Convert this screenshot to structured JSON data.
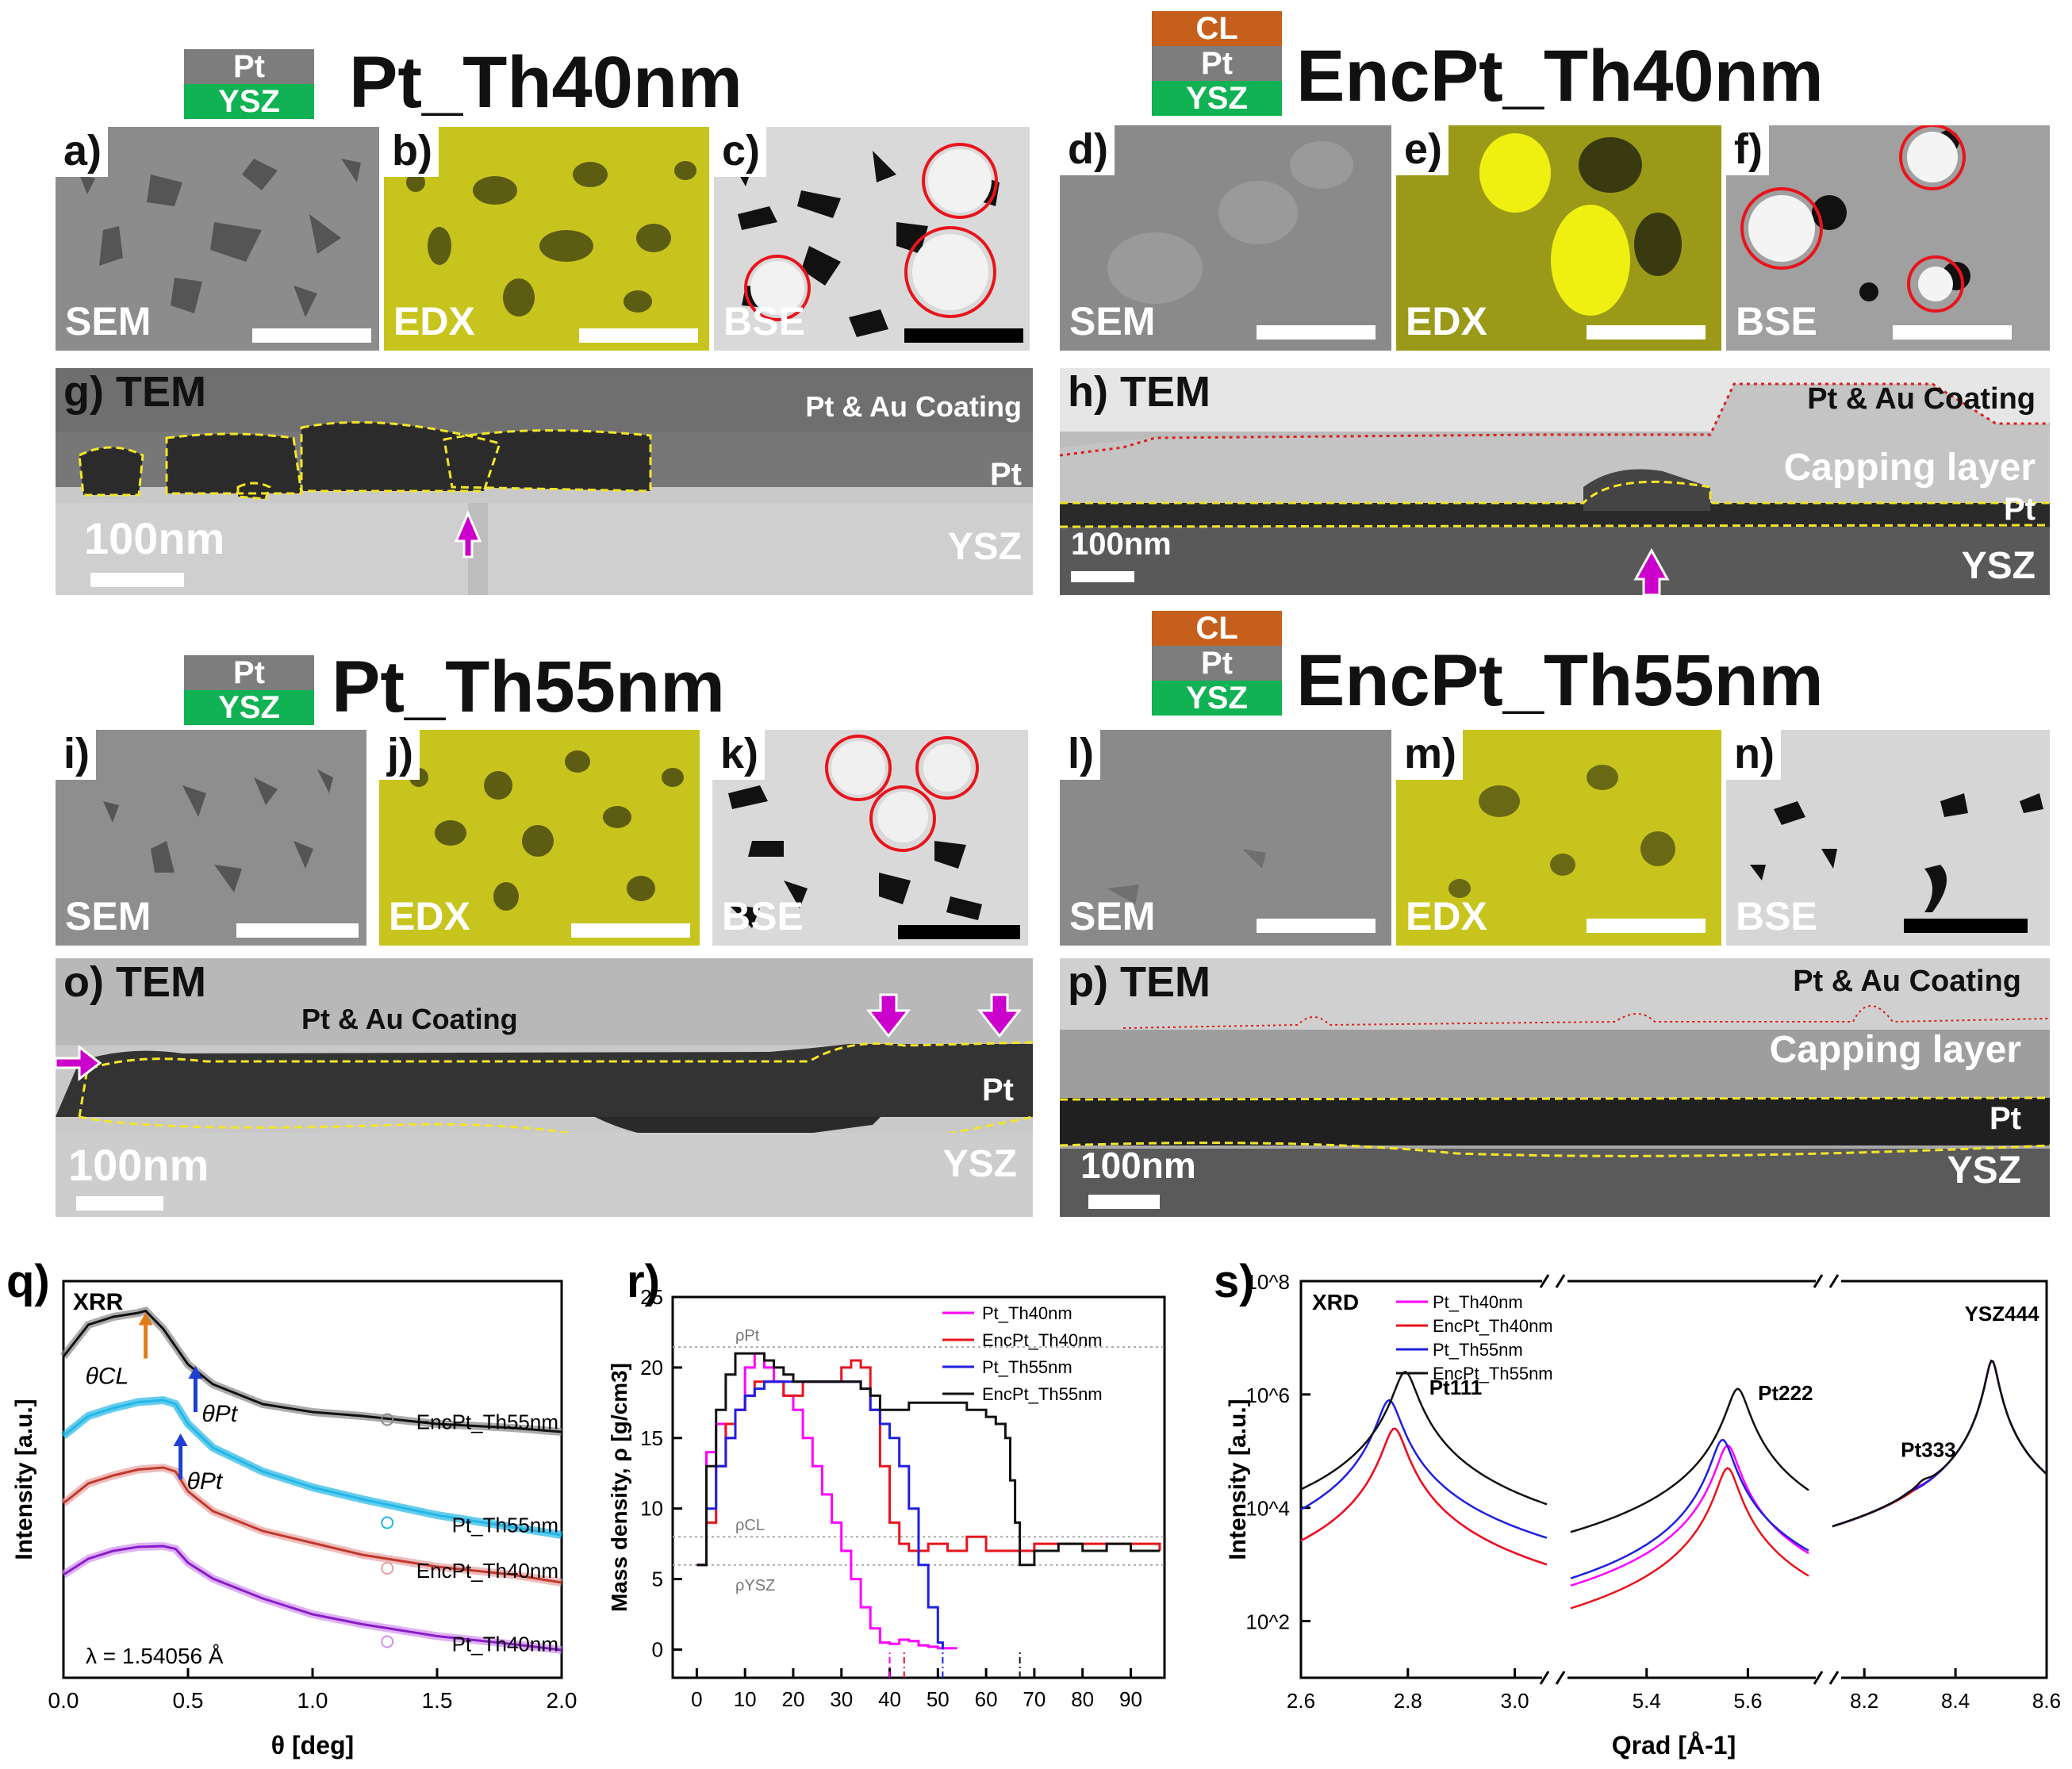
{
  "headers": {
    "th40": {
      "title": "Pt_Th40nm",
      "layers": [
        "Pt",
        "YSZ"
      ]
    },
    "enc40": {
      "title": "EncPt_Th40nm",
      "layers": [
        "CL",
        "Pt",
        "YSZ"
      ]
    },
    "th55": {
      "title": "Pt_Th55nm",
      "layers": [
        "Pt",
        "YSZ"
      ]
    },
    "enc55": {
      "title": "EncPt_Th55nm",
      "layers": [
        "CL",
        "Pt",
        "YSZ"
      ]
    }
  },
  "micro_panels": [
    {
      "id": "a)",
      "type": "SEM"
    },
    {
      "id": "b)",
      "type": "EDX"
    },
    {
      "id": "c)",
      "type": "BSE"
    },
    {
      "id": "d)",
      "type": "SEM"
    },
    {
      "id": "e)",
      "type": "EDX"
    },
    {
      "id": "f)",
      "type": "BSE"
    },
    {
      "id": "i)",
      "type": "SEM"
    },
    {
      "id": "j)",
      "type": "EDX"
    },
    {
      "id": "k)",
      "type": "BSE"
    },
    {
      "id": "l)",
      "type": "SEM"
    },
    {
      "id": "m)",
      "type": "EDX"
    },
    {
      "id": "n)",
      "type": "BSE"
    }
  ],
  "tem_panels": {
    "g": {
      "id": "g)",
      "type": "TEM",
      "coating": "Pt & Au Coating",
      "pt": "Pt",
      "ysz": "YSZ",
      "scale": "100nm"
    },
    "h": {
      "id": "h)",
      "type": "TEM",
      "coating": "Pt & Au Coating",
      "cap": "Capping layer",
      "pt": "Pt",
      "ysz": "YSZ",
      "scale": "100nm"
    },
    "o": {
      "id": "o)",
      "type": "TEM",
      "coating": "Pt & Au Coating",
      "pt": "Pt",
      "ysz": "YSZ",
      "scale": "100nm"
    },
    "p": {
      "id": "p)",
      "type": "TEM",
      "coating": "Pt & Au Coating",
      "cap": "Capping layer",
      "pt": "Pt",
      "ysz": "YSZ",
      "scale": "100nm"
    }
  },
  "colors": {
    "magenta": "#ff00ff",
    "red": "#e8141c",
    "blue": "#1f1fe0",
    "black": "#111111",
    "purple_fit": "#8a1cc8",
    "cyan_fit": "#23b7e5",
    "pink_fit": "#e8a0a0",
    "edx_yellow": "#d7d418"
  },
  "chart_data": [
    {
      "id": "q)",
      "type": "line",
      "title": "XRR",
      "xlabel": "θ [deg]",
      "ylabel": "Intensity [a.u.]",
      "xlim": [
        0.0,
        2.0
      ],
      "xticks": [
        "0.0",
        "0.5",
        "1.0",
        "1.5",
        "2.0"
      ],
      "annotation": "λ = 1.54056 Å",
      "markers": [
        "θCL",
        "θPt",
        "θPt"
      ],
      "series": [
        {
          "name": "EncPt_Th55nm",
          "x": [
            0.0,
            0.1,
            0.2,
            0.3,
            0.33,
            0.4,
            0.5,
            0.6,
            0.8,
            1.0,
            1.2,
            1.5,
            1.8,
            2.0
          ],
          "y": [
            8.1,
            8.9,
            9.1,
            9.2,
            9.25,
            8.8,
            7.9,
            7.4,
            6.9,
            6.7,
            6.6,
            6.4,
            6.3,
            6.2
          ]
        },
        {
          "name": "Pt_Th55nm",
          "x": [
            0.0,
            0.1,
            0.2,
            0.3,
            0.4,
            0.45,
            0.5,
            0.6,
            0.8,
            1.0,
            1.2,
            1.5,
            1.8,
            2.0
          ],
          "y": [
            6.1,
            6.6,
            6.8,
            6.95,
            7.0,
            6.9,
            6.4,
            5.8,
            5.2,
            4.8,
            4.5,
            4.1,
            3.8,
            3.6
          ]
        },
        {
          "name": "EncPt_Th40nm",
          "x": [
            0.0,
            0.1,
            0.2,
            0.3,
            0.4,
            0.45,
            0.5,
            0.6,
            0.8,
            1.0,
            1.2,
            1.5,
            1.8,
            2.0
          ],
          "y": [
            4.4,
            4.9,
            5.1,
            5.25,
            5.3,
            5.2,
            4.7,
            4.2,
            3.7,
            3.4,
            3.1,
            2.8,
            2.6,
            2.4
          ]
        },
        {
          "name": "Pt_Th40nm",
          "x": [
            0.0,
            0.1,
            0.2,
            0.3,
            0.4,
            0.45,
            0.5,
            0.6,
            0.8,
            1.0,
            1.2,
            1.5,
            1.8,
            2.0
          ],
          "y": [
            2.6,
            3.0,
            3.2,
            3.3,
            3.32,
            3.25,
            2.9,
            2.5,
            2.0,
            1.6,
            1.35,
            1.05,
            0.85,
            0.7
          ]
        }
      ]
    },
    {
      "id": "r)",
      "type": "line",
      "xlabel": "",
      "ylabel": "Mass density, ρ [g/cm3]",
      "xlim": [
        -5,
        97
      ],
      "ylim": [
        -2,
        25
      ],
      "xticks": [
        0,
        10,
        20,
        30,
        40,
        50,
        60,
        70,
        80,
        90
      ],
      "yticks": [
        0,
        5,
        10,
        15,
        20,
        25
      ],
      "ref_lines": [
        {
          "label": "ρPt",
          "y": 21.45
        },
        {
          "label": "ρCL",
          "y": 8.0
        },
        {
          "label": "ρYSZ",
          "y": 6.0
        }
      ],
      "legend": "top-right",
      "series": [
        {
          "name": "Pt_Th40nm",
          "color": "#ff00ff",
          "x": [
            0,
            2,
            4,
            6,
            8,
            10,
            12,
            14,
            16,
            18,
            20,
            22,
            24,
            26,
            28,
            30,
            32,
            34,
            36,
            38,
            40,
            42,
            44,
            46,
            48,
            50,
            52,
            54
          ],
          "y": [
            6,
            14,
            16,
            15,
            17,
            20,
            21,
            20,
            19,
            18,
            17,
            15,
            13,
            11,
            9,
            7,
            5,
            3,
            1.5,
            0.5,
            0.4,
            0.7,
            0.6,
            0.3,
            0.2,
            0.1,
            0.1,
            0.1
          ]
        },
        {
          "name": "EncPt_Th40nm",
          "color": "#e8141c",
          "x": [
            0,
            2,
            4,
            6,
            8,
            10,
            12,
            14,
            16,
            18,
            20,
            22,
            24,
            26,
            28,
            30,
            32,
            34,
            36,
            38,
            40,
            42,
            44,
            48,
            52,
            56,
            60,
            64,
            70,
            80,
            90,
            96
          ],
          "y": [
            6,
            9,
            13,
            16,
            17,
            18,
            19,
            19,
            19,
            18,
            18,
            19,
            19,
            19,
            19,
            20,
            20.5,
            20,
            17,
            13,
            9,
            7.5,
            7,
            7.5,
            7,
            8,
            7,
            7,
            7.5,
            7.5,
            7.5,
            7
          ]
        },
        {
          "name": "Pt_Th55nm",
          "color": "#1f1fe0",
          "x": [
            0,
            2,
            4,
            6,
            8,
            10,
            12,
            14,
            16,
            18,
            20,
            22,
            24,
            26,
            28,
            30,
            32,
            34,
            36,
            38,
            40,
            42,
            44,
            46,
            48,
            50,
            51
          ],
          "y": [
            6,
            10,
            13,
            15,
            17,
            18,
            18.5,
            19,
            19,
            19,
            19,
            19,
            19,
            19,
            19,
            19,
            19,
            18.5,
            17,
            16,
            15,
            13,
            10,
            6,
            3,
            0.5,
            0
          ]
        },
        {
          "name": "EncPt_Th55nm",
          "color": "#111111",
          "x": [
            0,
            2,
            4,
            6,
            8,
            10,
            12,
            14,
            16,
            18,
            20,
            22,
            24,
            26,
            28,
            30,
            32,
            34,
            36,
            38,
            40,
            44,
            48,
            52,
            56,
            60,
            62,
            64,
            65,
            66,
            67,
            70,
            75,
            80,
            85,
            90,
            96
          ],
          "y": [
            6,
            13,
            17,
            19.5,
            21,
            21,
            21,
            20.5,
            20,
            19.5,
            19,
            19,
            19,
            19,
            19,
            19,
            19,
            18.5,
            18,
            17,
            17,
            17.5,
            17.5,
            17.5,
            17,
            16.5,
            16,
            15,
            12,
            9,
            6,
            7,
            7.5,
            7,
            7.5,
            7,
            7
          ]
        }
      ]
    },
    {
      "id": "s)",
      "type": "line",
      "title": "XRD",
      "xlabel": "Qrad [Å-1]",
      "ylabel": "Intensity [a.u.]",
      "xticks": [
        "2.6",
        "2.8",
        "3.0",
        "5.4",
        "5.6",
        "8.2",
        "8.4",
        "8.6"
      ],
      "yticks": [
        "10^2",
        "10^4",
        "10^6",
        "10^8"
      ],
      "peak_labels": [
        "Pt111",
        "Pt222",
        "Pt333",
        "YSZ444"
      ],
      "legend": "top-left",
      "series": [
        {
          "name": "Pt_Th40nm",
          "color": "#ff00ff"
        },
        {
          "name": "EncPt_Th40nm",
          "color": "#e8141c"
        },
        {
          "name": "Pt_Th55nm",
          "color": "#1f1fe0"
        },
        {
          "name": "EncPt_Th55nm",
          "color": "#111111"
        }
      ]
    }
  ]
}
